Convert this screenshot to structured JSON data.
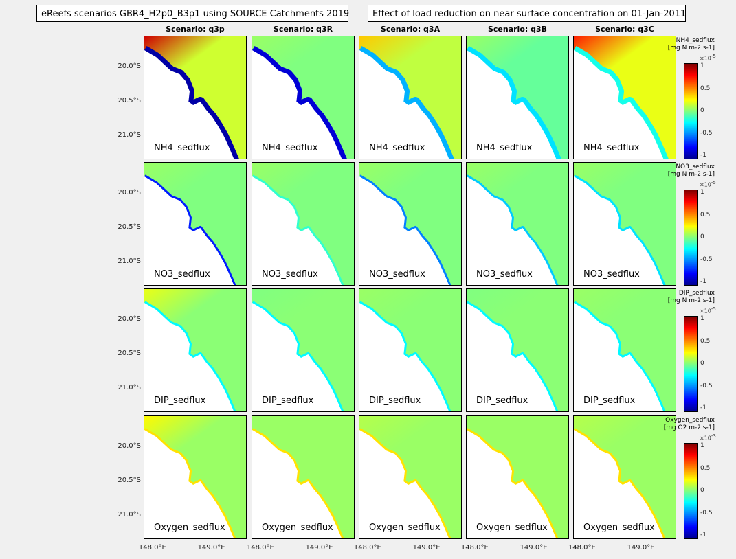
{
  "titles": {
    "left": "eReefs scenarios GBR4_H2p0_B3p1 using SOURCE Catchments 2019",
    "right": "Effect of load reduction on near surface concentration on 01-Jan-2011"
  },
  "columns": [
    "Scenario: q3p",
    "Scenario: q3R",
    "Scenario: q3A",
    "Scenario: q3B",
    "Scenario: q3C"
  ],
  "rows": [
    {
      "label": "NH4_sedflux",
      "cbar_title_1": "NH4_sedflux",
      "cbar_title_2": "[mg N  m-2 s-1]",
      "cbar_exp": "×10",
      "cbar_exp_power": "-5"
    },
    {
      "label": "NO3_sedflux",
      "cbar_title_1": "NO3_sedflux",
      "cbar_title_2": "[mg N  m-2 s-1]",
      "cbar_exp": "×10",
      "cbar_exp_power": "-5"
    },
    {
      "label": "DIP_sedflux",
      "cbar_title_1": "DIP_sedflux",
      "cbar_title_2": "[mg N  m-2 s-1]",
      "cbar_exp": "×10",
      "cbar_exp_power": "-5"
    },
    {
      "label": "Oxygen_sedflux",
      "cbar_title_1": "Oxygen_sedflux",
      "cbar_title_2": "[mg O2 m-2 s-1]",
      "cbar_exp": "×10",
      "cbar_exp_power": "-3"
    }
  ],
  "y_ticks": [
    "20.0°S",
    "20.5°S",
    "21.0°S"
  ],
  "x_ticks": [
    "148.0°E",
    "149.0°E"
  ],
  "cbar_ticks": [
    "1",
    "0.5",
    "0",
    "-0.5",
    "-1"
  ],
  "chart_data": {
    "type": "heatmap",
    "title": "Effect of load reduction on near surface concentration on 01-Jan-2011",
    "subtitle": "eReefs scenarios GBR4_H2p0_B3p1 using SOURCE Catchments 2019",
    "columns": [
      "q3p",
      "q3R",
      "q3A",
      "q3B",
      "q3C"
    ],
    "variables": [
      "NH4_sedflux",
      "NO3_sedflux",
      "DIP_sedflux",
      "Oxygen_sedflux"
    ],
    "xlim": [
      147.85,
      149.6
    ],
    "ylim": [
      -21.35,
      -19.55
    ],
    "x_ticks": [
      148.0,
      149.0
    ],
    "y_ticks": [
      -20.0,
      -20.5,
      -21.0
    ],
    "colorbar_range": [
      -1,
      1
    ],
    "colorbar_ticks": [
      -1,
      -0.5,
      0,
      0.5,
      1
    ],
    "colormap": "jet",
    "colors": {
      "land": "#ffffff",
      "zero": "#80ff80",
      "background": "#f0f0f0"
    }
  }
}
